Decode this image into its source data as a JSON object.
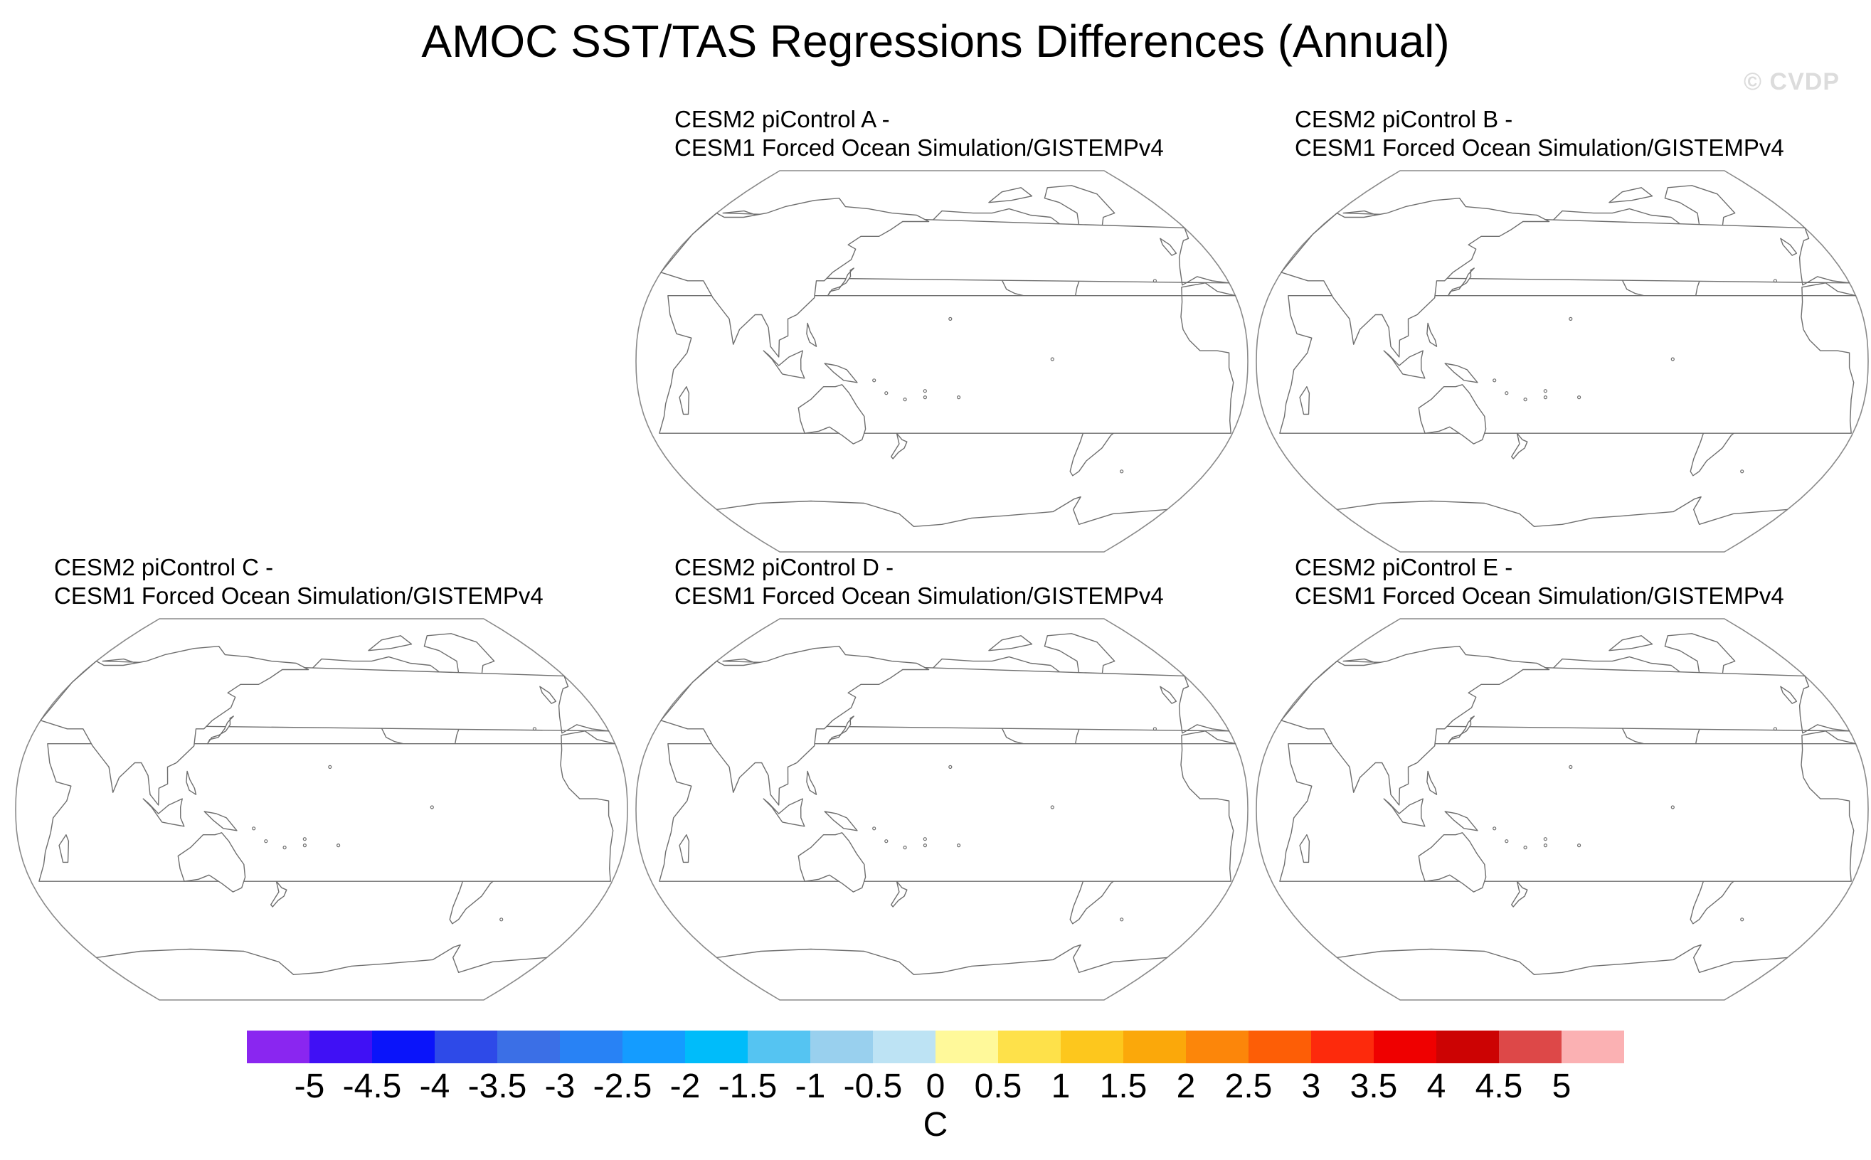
{
  "figure": {
    "title": "AMOC SST/TAS Regressions Differences (Annual)",
    "watermark": "© CVDP"
  },
  "panels": [
    {
      "line1": "CESM2 piControl A -",
      "line2": "CESM1 Forced Ocean Simulation/GISTEMPv4"
    },
    {
      "line1": "CESM2 piControl B -",
      "line2": "CESM1 Forced Ocean Simulation/GISTEMPv4"
    },
    {
      "line1": "CESM2 piControl C -",
      "line2": "CESM1 Forced Ocean Simulation/GISTEMPv4"
    },
    {
      "line1": "CESM2 piControl D -",
      "line2": "CESM1 Forced Ocean Simulation/GISTEMPv4"
    },
    {
      "line1": "CESM2 piControl E -",
      "line2": "CESM1 Forced Ocean Simulation/GISTEMPv4"
    }
  ],
  "map_style": {
    "land_fill": "#ffffff",
    "coastline_color": "#6e6e6e",
    "outline_color": "#8a8a8a"
  },
  "colorbar": {
    "colors": [
      "#8a26f0",
      "#4010f5",
      "#0a14fa",
      "#2e4ae8",
      "#3b6fe6",
      "#2882f5",
      "#149cff",
      "#00bcfa",
      "#55c4f2",
      "#99d0ee",
      "#bde3f4",
      "#fff99a",
      "#fee14a",
      "#fdc71d",
      "#fba80a",
      "#fc860a",
      "#fd5e06",
      "#fd2a0c",
      "#ef0000",
      "#cc0303",
      "#dd4848",
      "#fbb1b3"
    ],
    "ticks": [
      "-5",
      "-4.5",
      "-4",
      "-3.5",
      "-3",
      "-2.5",
      "-2",
      "-1.5",
      "-1",
      "-0.5",
      "0",
      "0.5",
      "1",
      "1.5",
      "2",
      "2.5",
      "3",
      "3.5",
      "4",
      "4.5",
      "5"
    ],
    "unit": "C"
  }
}
